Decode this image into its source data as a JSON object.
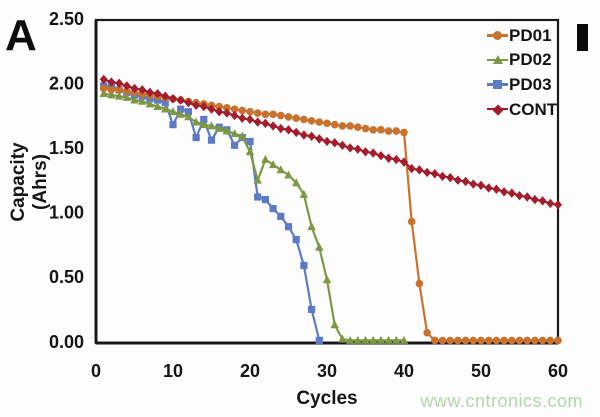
{
  "figure": {
    "panel_label": "A",
    "crop_bar_present": true,
    "background": "#fdfdfd",
    "axis_color": "#1a1a1a"
  },
  "watermark": {
    "text": "www.cntronics.com",
    "color": "#afd8a6"
  },
  "chart_data": {
    "type": "line",
    "title": "",
    "xlabel": "Cycles",
    "ylabel": "Capacity (Ahrs)",
    "xlim": [
      0,
      60
    ],
    "ylim": [
      0,
      2.5
    ],
    "grid": false,
    "legend_position": "top-right-inside",
    "x_ticks": [
      0,
      10,
      20,
      30,
      40,
      50,
      60
    ],
    "x_tick_labels": [
      "0",
      "10",
      "20",
      "30",
      "40",
      "50",
      "60"
    ],
    "y_ticks": [
      0,
      0.5,
      1,
      1.5,
      2,
      2.5
    ],
    "y_tick_labels": [
      "0.00",
      "0.50",
      "1.00",
      "1.50",
      "2.00",
      "2.50"
    ],
    "series": [
      {
        "name": "PD01",
        "color": "#c8722f",
        "marker": "circle",
        "points": [
          [
            1,
            1.97
          ],
          [
            2,
            1.96
          ],
          [
            3,
            1.96
          ],
          [
            4,
            1.95
          ],
          [
            5,
            1.94
          ],
          [
            6,
            1.93
          ],
          [
            7,
            1.92
          ],
          [
            8,
            1.91
          ],
          [
            9,
            1.9
          ],
          [
            10,
            1.89
          ],
          [
            11,
            1.88
          ],
          [
            12,
            1.87
          ],
          [
            13,
            1.86
          ],
          [
            14,
            1.85
          ],
          [
            15,
            1.84
          ],
          [
            16,
            1.83
          ],
          [
            17,
            1.82
          ],
          [
            18,
            1.81
          ],
          [
            19,
            1.8
          ],
          [
            20,
            1.79
          ],
          [
            21,
            1.78
          ],
          [
            22,
            1.77
          ],
          [
            23,
            1.77
          ],
          [
            24,
            1.76
          ],
          [
            25,
            1.75
          ],
          [
            26,
            1.74
          ],
          [
            27,
            1.73
          ],
          [
            28,
            1.72
          ],
          [
            29,
            1.71
          ],
          [
            30,
            1.7
          ],
          [
            31,
            1.69
          ],
          [
            32,
            1.68
          ],
          [
            33,
            1.68
          ],
          [
            34,
            1.67
          ],
          [
            35,
            1.66
          ],
          [
            36,
            1.65
          ],
          [
            37,
            1.65
          ],
          [
            38,
            1.64
          ],
          [
            39,
            1.64
          ],
          [
            40,
            1.63
          ],
          [
            41,
            0.94
          ],
          [
            42,
            0.46
          ],
          [
            43,
            0.08
          ],
          [
            44,
            0.02
          ],
          [
            45,
            0.02
          ],
          [
            46,
            0.02
          ],
          [
            47,
            0.02
          ],
          [
            48,
            0.02
          ],
          [
            49,
            0.02
          ],
          [
            50,
            0.02
          ],
          [
            51,
            0.02
          ],
          [
            52,
            0.02
          ],
          [
            53,
            0.02
          ],
          [
            54,
            0.02
          ],
          [
            55,
            0.02
          ],
          [
            56,
            0.02
          ],
          [
            57,
            0.02
          ],
          [
            58,
            0.02
          ],
          [
            59,
            0.02
          ],
          [
            60,
            0.02
          ]
        ]
      },
      {
        "name": "PD02",
        "color": "#7d9845",
        "marker": "triangle",
        "points": [
          [
            1,
            1.93
          ],
          [
            2,
            1.92
          ],
          [
            3,
            1.91
          ],
          [
            4,
            1.9
          ],
          [
            5,
            1.88
          ],
          [
            6,
            1.87
          ],
          [
            7,
            1.85
          ],
          [
            8,
            1.83
          ],
          [
            9,
            1.81
          ],
          [
            10,
            1.79
          ],
          [
            11,
            1.77
          ],
          [
            12,
            1.75
          ],
          [
            13,
            1.71
          ],
          [
            14,
            1.69
          ],
          [
            15,
            1.68
          ],
          [
            16,
            1.66
          ],
          [
            17,
            1.64
          ],
          [
            18,
            1.62
          ],
          [
            19,
            1.6
          ],
          [
            20,
            1.48
          ],
          [
            21,
            1.26
          ],
          [
            22,
            1.42
          ],
          [
            23,
            1.38
          ],
          [
            24,
            1.34
          ],
          [
            25,
            1.3
          ],
          [
            26,
            1.24
          ],
          [
            27,
            1.15
          ],
          [
            28,
            0.9
          ],
          [
            29,
            0.74
          ],
          [
            30,
            0.49
          ],
          [
            31,
            0.14
          ],
          [
            32,
            0.03
          ],
          [
            33,
            0.02
          ],
          [
            34,
            0.02
          ],
          [
            35,
            0.02
          ],
          [
            36,
            0.02
          ],
          [
            37,
            0.02
          ],
          [
            38,
            0.02
          ],
          [
            39,
            0.02
          ],
          [
            40,
            0.02
          ]
        ]
      },
      {
        "name": "PD03",
        "color": "#5c7bc4",
        "marker": "square",
        "points": [
          [
            1,
            1.99
          ],
          [
            2,
            1.98
          ],
          [
            3,
            1.96
          ],
          [
            4,
            1.94
          ],
          [
            5,
            1.92
          ],
          [
            6,
            1.91
          ],
          [
            7,
            1.89
          ],
          [
            8,
            1.88
          ],
          [
            9,
            1.86
          ],
          [
            10,
            1.69
          ],
          [
            11,
            1.81
          ],
          [
            12,
            1.79
          ],
          [
            13,
            1.59
          ],
          [
            14,
            1.73
          ],
          [
            15,
            1.57
          ],
          [
            16,
            1.67
          ],
          [
            17,
            1.65
          ],
          [
            18,
            1.53
          ],
          [
            19,
            1.59
          ],
          [
            20,
            1.56
          ],
          [
            21,
            1.13
          ],
          [
            22,
            1.11
          ],
          [
            23,
            1.04
          ],
          [
            24,
            0.98
          ],
          [
            25,
            0.9
          ],
          [
            26,
            0.8
          ],
          [
            27,
            0.6
          ],
          [
            28,
            0.26
          ],
          [
            29,
            0.02
          ]
        ]
      },
      {
        "name": "CONT",
        "color": "#a21e2d",
        "marker": "diamond",
        "points": [
          [
            1,
            2.04
          ],
          [
            2,
            2.02
          ],
          [
            3,
            2.01
          ],
          [
            4,
            1.99
          ],
          [
            5,
            1.97
          ],
          [
            6,
            1.96
          ],
          [
            7,
            1.94
          ],
          [
            8,
            1.93
          ],
          [
            9,
            1.91
          ],
          [
            10,
            1.89
          ],
          [
            11,
            1.88
          ],
          [
            12,
            1.86
          ],
          [
            13,
            1.84
          ],
          [
            14,
            1.83
          ],
          [
            15,
            1.81
          ],
          [
            16,
            1.79
          ],
          [
            17,
            1.78
          ],
          [
            18,
            1.76
          ],
          [
            19,
            1.74
          ],
          [
            20,
            1.73
          ],
          [
            21,
            1.71
          ],
          [
            22,
            1.7
          ],
          [
            23,
            1.68
          ],
          [
            24,
            1.66
          ],
          [
            25,
            1.65
          ],
          [
            26,
            1.63
          ],
          [
            27,
            1.61
          ],
          [
            28,
            1.6
          ],
          [
            29,
            1.58
          ],
          [
            30,
            1.56
          ],
          [
            31,
            1.55
          ],
          [
            32,
            1.53
          ],
          [
            33,
            1.51
          ],
          [
            34,
            1.5
          ],
          [
            35,
            1.48
          ],
          [
            36,
            1.47
          ],
          [
            37,
            1.45
          ],
          [
            38,
            1.43
          ],
          [
            39,
            1.42
          ],
          [
            40,
            1.4
          ],
          [
            41,
            1.35
          ],
          [
            42,
            1.34
          ],
          [
            43,
            1.32
          ],
          [
            44,
            1.31
          ],
          [
            45,
            1.29
          ],
          [
            46,
            1.28
          ],
          [
            47,
            1.26
          ],
          [
            48,
            1.25
          ],
          [
            49,
            1.23
          ],
          [
            50,
            1.22
          ],
          [
            51,
            1.2
          ],
          [
            52,
            1.19
          ],
          [
            53,
            1.17
          ],
          [
            54,
            1.16
          ],
          [
            55,
            1.14
          ],
          [
            56,
            1.13
          ],
          [
            57,
            1.11
          ],
          [
            58,
            1.1
          ],
          [
            59,
            1.08
          ],
          [
            60,
            1.07
          ]
        ]
      }
    ]
  }
}
